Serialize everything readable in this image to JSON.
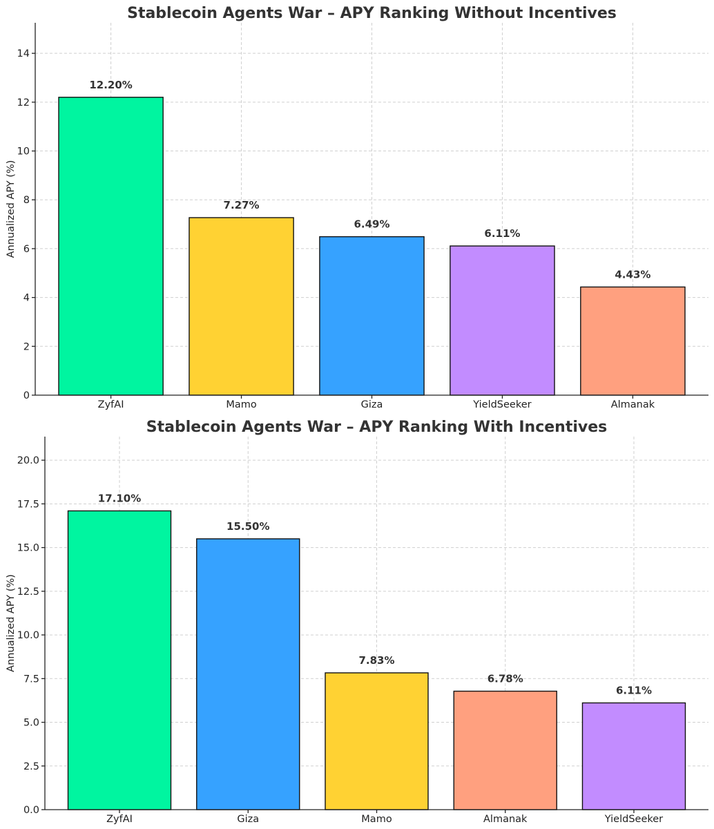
{
  "chart_data": [
    {
      "type": "bar",
      "title": "Stablecoin Agents War – APY Ranking Without Incentives",
      "xlabel": "",
      "ylabel": "Annualized APY (%)",
      "ylim": [
        0,
        15.25
      ],
      "yticks": [
        0,
        2,
        4,
        6,
        8,
        10,
        12,
        14
      ],
      "ytick_labels": [
        "0",
        "2",
        "4",
        "6",
        "8",
        "10",
        "12",
        "14"
      ],
      "categories": [
        "ZyfAI",
        "Mamo",
        "Giza",
        "YieldSeeker",
        "Almanak"
      ],
      "values": [
        12.2,
        7.27,
        6.49,
        6.11,
        4.43
      ],
      "value_labels": [
        "12.20%",
        "7.27%",
        "6.49%",
        "6.11%",
        "4.43%"
      ],
      "colors": [
        "#00f5a0",
        "#ffd233",
        "#36a2ff",
        "#c28cff",
        "#ffa07f"
      ],
      "grid": true,
      "legend": "none"
    },
    {
      "type": "bar",
      "title": "Stablecoin Agents War – APY Ranking With Incentives",
      "xlabel": "",
      "ylabel": "Annualized APY (%)",
      "ylim": [
        0,
        21.35
      ],
      "yticks": [
        0,
        2.5,
        5,
        7.5,
        10,
        12.5,
        15,
        17.5,
        20
      ],
      "ytick_labels": [
        "0.0",
        "2.5",
        "5.0",
        "7.5",
        "10.0",
        "12.5",
        "15.0",
        "17.5",
        "20.0"
      ],
      "categories": [
        "ZyfAI",
        "Giza",
        "Mamo",
        "Almanak",
        "YieldSeeker"
      ],
      "values": [
        17.1,
        15.5,
        7.83,
        6.78,
        6.11
      ],
      "value_labels": [
        "17.10%",
        "15.50%",
        "7.83%",
        "6.78%",
        "6.11%"
      ],
      "colors": [
        "#00f5a0",
        "#36a2ff",
        "#ffd233",
        "#ffa07f",
        "#c28cff"
      ],
      "grid": true,
      "legend": "none"
    }
  ]
}
